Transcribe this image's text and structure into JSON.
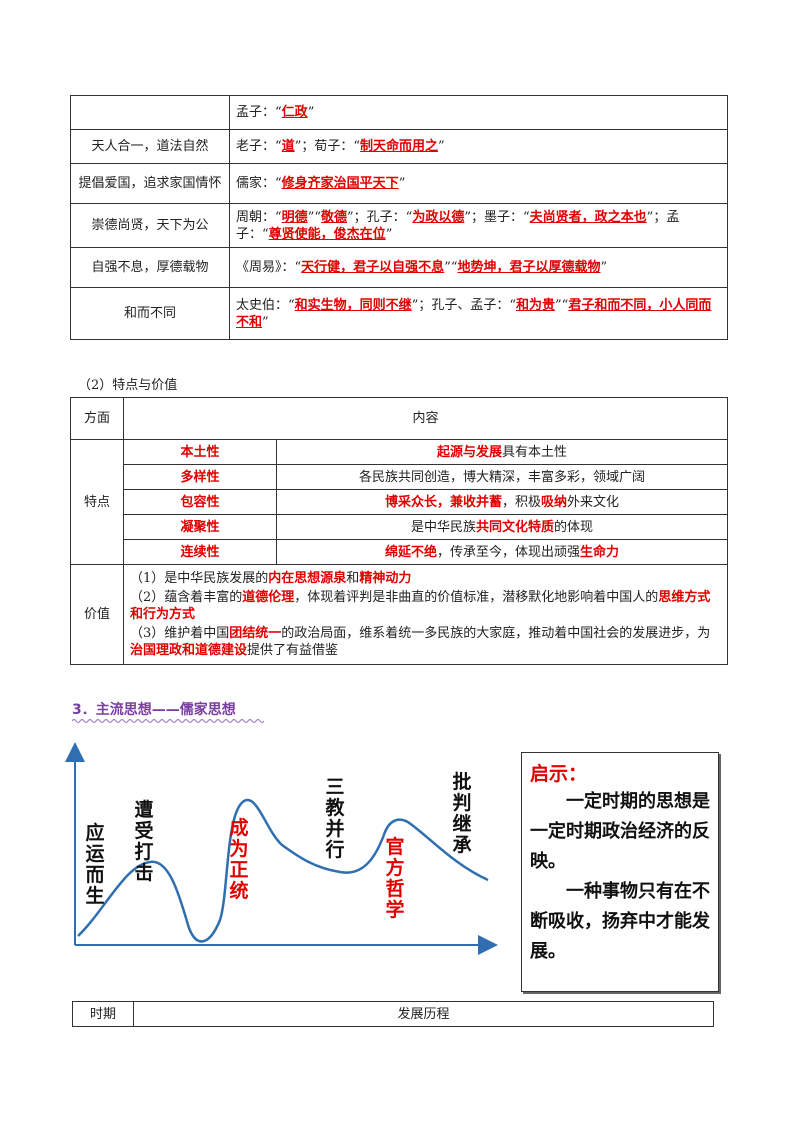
{
  "table1": {
    "rows": [
      {
        "label": "",
        "content": [
          {
            "t": "孟子："
          },
          {
            "t": "“"
          },
          {
            "t": "仁政",
            "r": 1
          },
          {
            "t": "”"
          }
        ]
      },
      {
        "label": "天人合一，道法自然",
        "content": [
          {
            "t": "老子："
          },
          {
            "t": "“"
          },
          {
            "t": "道",
            "r": 1
          },
          {
            "t": "”；荀子："
          },
          {
            "t": "“"
          },
          {
            "t": "制天命而用之",
            "r": 1
          },
          {
            "t": "”"
          }
        ]
      },
      {
        "label": "提倡爱国，追求家国情怀",
        "content": [
          {
            "t": "儒家："
          },
          {
            "t": "“"
          },
          {
            "t": "修身齐家治国平天下",
            "r": 1
          },
          {
            "t": "”"
          }
        ]
      },
      {
        "label": "崇德尚贤，天下为公",
        "content": [
          {
            "t": "周朝："
          },
          {
            "t": "“"
          },
          {
            "t": "明德",
            "r": 1
          },
          {
            "t": "”"
          },
          {
            "t": "“"
          },
          {
            "t": "敬德",
            "r": 1
          },
          {
            "t": "”；孔子："
          },
          {
            "t": "“"
          },
          {
            "t": "为政以德",
            "r": 1
          },
          {
            "t": "”；墨子："
          },
          {
            "t": "“"
          },
          {
            "t": "夫尚贤者，政之本也",
            "r": 1
          },
          {
            "t": "”；孟子："
          },
          {
            "t": "“"
          },
          {
            "t": "尊贤使能，俊杰在位",
            "r": 1
          },
          {
            "t": "”"
          }
        ]
      },
      {
        "label": "自强不息，厚德载物",
        "content": [
          {
            "t": "《周易》："
          },
          {
            "t": "“"
          },
          {
            "t": "天行健，君子以自强不息",
            "r": 1
          },
          {
            "t": "”"
          },
          {
            "t": "“"
          },
          {
            "t": "地势坤，君子以厚德载物",
            "r": 1
          },
          {
            "t": "”"
          }
        ]
      },
      {
        "label": "和而不同",
        "content": [
          {
            "t": "太史伯："
          },
          {
            "t": "“"
          },
          {
            "t": "和实生物，同则不继",
            "r": 1
          },
          {
            "t": "”；孔子、孟子："
          },
          {
            "t": "“"
          },
          {
            "t": "和为贵",
            "r": 1
          },
          {
            "t": "”"
          },
          {
            "t": "“"
          },
          {
            "t": "君子和而不同，小人同而不和",
            "r": 1
          },
          {
            "t": "”"
          }
        ]
      }
    ]
  },
  "subheading2": "（2）特点与价值",
  "table2": {
    "header_aspect": "方面",
    "header_content": "内容",
    "features_label": "特点",
    "features": [
      {
        "key": "本土性",
        "desc": [
          {
            "t": "起源与发展",
            "r": 1
          },
          {
            "t": "具有本土性"
          }
        ]
      },
      {
        "key": "多样性",
        "desc": [
          {
            "t": "各民族共同创造，博大精深，丰富多彩，领域广阔"
          }
        ]
      },
      {
        "key": "包容性",
        "desc": [
          {
            "t": "博采众长，兼收并蓄",
            "r": 1
          },
          {
            "t": "，积极"
          },
          {
            "t": "吸纳",
            "r": 1
          },
          {
            "t": "外来文化"
          }
        ]
      },
      {
        "key": "凝聚性",
        "desc": [
          {
            "t": "是中华民族"
          },
          {
            "t": "共同文化特质",
            "r": 1
          },
          {
            "t": "的体现"
          }
        ]
      },
      {
        "key": "连续性",
        "desc": [
          {
            "t": "绵延不绝",
            "r": 1
          },
          {
            "t": "，传承至今，体现出顽强"
          },
          {
            "t": "生命力",
            "r": 1
          }
        ]
      }
    ],
    "value_label": "价值",
    "values": [
      [
        {
          "t": "（1）是中华民族发展的"
        },
        {
          "t": "内在思想源泉",
          "r": 1
        },
        {
          "t": "和"
        },
        {
          "t": "精神动力",
          "r": 1
        }
      ],
      [
        {
          "t": "（2）蕴含着丰富的"
        },
        {
          "t": "道德伦理",
          "r": 1
        },
        {
          "t": "，体现着评判是非曲直的价值标准，潜移默化地影响着中国人的"
        },
        {
          "t": "思维方式和行为方式",
          "r": 1
        }
      ],
      [
        {
          "t": "（3）维护着中国"
        },
        {
          "t": "团结统一",
          "r": 1
        },
        {
          "t": "的政治局面，维系着统一多民族的大家庭，推动着中国社会的发展进步，为"
        },
        {
          "t": "治国理政和道德建设",
          "r": 1
        },
        {
          "t": "提供了有益借鉴"
        }
      ]
    ]
  },
  "section3": {
    "title": "3．主流思想——儒家思想"
  },
  "curve_labels": [
    {
      "text": "应运而生",
      "color": "black"
    },
    {
      "text": "遭受打击",
      "color": "black"
    },
    {
      "text": "成为正统",
      "color": "red"
    },
    {
      "text": "三教并行",
      "color": "black"
    },
    {
      "text": "官方哲学",
      "color": "red"
    },
    {
      "text": "批判继承",
      "color": "black"
    }
  ],
  "insight": {
    "title": "启示：",
    "p1": "一定时期的思想是一定时期政治经济的反映。",
    "p2": "一种事物只有在不断吸收，扬弃中才能发展。"
  },
  "table3": {
    "col1": "时期",
    "col2": "发展历程"
  },
  "colors": {
    "accent_red": "#e00000",
    "heading_purple": "#7a3ea0",
    "curve_blue": "#2f6fb0"
  }
}
